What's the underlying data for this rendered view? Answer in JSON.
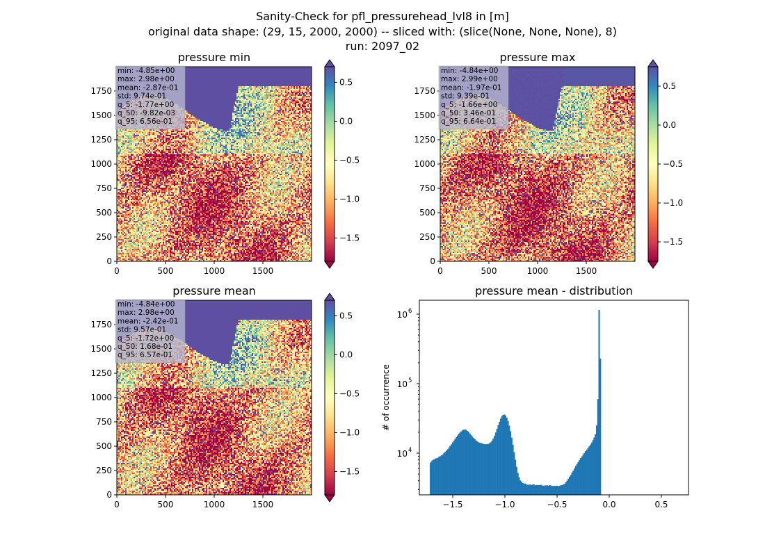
{
  "figure": {
    "title_lines": [
      "Sanity-Check for pfl_pressurehead_lvl8 in [m]",
      "original data shape: (29, 15, 2000, 2000) -- sliced with: (slice(None, None, None), 8)",
      "run: 2097_02"
    ]
  },
  "colormap": {
    "name": "Spectral",
    "stops": [
      "#9e0142",
      "#d53e4f",
      "#f46d43",
      "#fdae61",
      "#fee08b",
      "#ffffbf",
      "#e6f598",
      "#abdda4",
      "#66c2a5",
      "#3288bd",
      "#5e4fa2"
    ]
  },
  "chart_data": [
    {
      "type": "heatmap",
      "title": "pressure min",
      "xlim": [
        0,
        2000
      ],
      "ylim": [
        0,
        2000
      ],
      "xticks": [
        0,
        500,
        1000,
        1500
      ],
      "yticks": [
        0,
        250,
        500,
        750,
        1000,
        1250,
        1500,
        1750
      ],
      "colorbar": {
        "vmin": -1.8,
        "vmax": 0.7,
        "ticks": [
          0.5,
          0.0,
          -0.5,
          -1.0,
          -1.5
        ],
        "tick_labels": [
          "0.5",
          "0.0",
          "−0.5",
          "−1.0",
          "−1.5"
        ],
        "extend": "both"
      },
      "stats": [
        "min: -4.85e+00",
        "max: 2.98e+00",
        "mean: -2.87e-01",
        "std: 9.74e-01",
        "q_5: -1.77e+00",
        "q_50: -9.82e-03",
        "q_95: 6.56e-01"
      ]
    },
    {
      "type": "heatmap",
      "title": "pressure max",
      "xlim": [
        0,
        2000
      ],
      "ylim": [
        0,
        2000
      ],
      "xticks": [
        0,
        500,
        1000,
        1500
      ],
      "yticks": [
        0,
        250,
        500,
        750,
        1000,
        1250,
        1500,
        1750
      ],
      "colorbar": {
        "vmin": -1.75,
        "vmax": 0.75,
        "ticks": [
          0.5,
          0.0,
          -0.5,
          -1.0,
          -1.5
        ],
        "tick_labels": [
          "0.5",
          "0.0",
          "−0.5",
          "−1.0",
          "−1.5"
        ],
        "extend": "both"
      },
      "stats": [
        "min: -4.84e+00",
        "max: 2.99e+00",
        "mean: -1.97e-01",
        "std: 9.39e-01",
        "q_5: -1.66e+00",
        "q_50: 3.46e-01",
        "q_95: 6.64e-01"
      ]
    },
    {
      "type": "heatmap",
      "title": "pressure mean",
      "xlim": [
        0,
        2000
      ],
      "ylim": [
        0,
        2000
      ],
      "xticks": [
        0,
        500,
        1000,
        1500
      ],
      "yticks": [
        0,
        250,
        500,
        750,
        1000,
        1250,
        1500,
        1750
      ],
      "colorbar": {
        "vmin": -1.8,
        "vmax": 0.7,
        "ticks": [
          0.5,
          0.0,
          -0.5,
          -1.0,
          -1.5
        ],
        "tick_labels": [
          "0.5",
          "0.0",
          "−0.5",
          "−1.0",
          "−1.5"
        ],
        "extend": "both"
      },
      "stats": [
        "min: -4.84e+00",
        "max: 2.98e+00",
        "mean: -2.42e-01",
        "std: 9.57e-01",
        "q_5: -1.72e+00",
        "q_50: 1.68e-01",
        "q_95: 6.57e-01"
      ]
    },
    {
      "type": "bar",
      "title": "pressure mean - distribution",
      "ylabel": "# of occurrence",
      "yscale": "log",
      "xlim": [
        -1.82,
        0.76
      ],
      "ylim_log10": [
        3.4,
        6.2
      ],
      "xticks": [
        -1.5,
        -1.0,
        -0.5,
        0.0,
        0.5
      ],
      "xtick_labels": [
        "−1.5",
        "−1.0",
        "−0.5",
        "0.0",
        "0.5"
      ],
      "yticks_log10": [
        4,
        5,
        6
      ],
      "ytick_labels": [
        "10",
        "10",
        "10"
      ],
      "ytick_exponents": [
        "4",
        "5",
        "6"
      ],
      "color": "#1f77b4",
      "bin_start": -1.72,
      "bin_width": 0.0118,
      "counts": [
        7300,
        7697,
        8012,
        8108,
        8380,
        8444,
        8603,
        8926,
        9049,
        9326,
        9567,
        10036,
        10449,
        10890,
        11406,
        12050,
        12729,
        13399,
        14269,
        15085,
        15961,
        16957,
        17940,
        19032,
        19781,
        20612,
        21334,
        21767,
        21885,
        21578,
        20922,
        20170,
        19156,
        18136,
        17305,
        16576,
        15863,
        15225,
        14715,
        14328,
        14129,
        13984,
        13784,
        13576,
        13462,
        13440,
        13474,
        13574,
        13872,
        14311,
        15147,
        16287,
        17798,
        19813,
        22349,
        25221,
        28289,
        31354,
        33868,
        35546,
        35978,
        34866,
        32417,
        28926,
        24876,
        20672,
        16719,
        13186,
        10270,
        8038,
        6365,
        5204,
        4511,
        4041,
        3891,
        3726,
        3626,
        3656,
        3538,
        3508,
        3520,
        3559,
        3480,
        3537,
        3556,
        3453,
        3478,
        3475,
        3477,
        3464,
        3509,
        3397,
        3416,
        3417,
        3438,
        3442,
        3402,
        3465,
        3410,
        3366,
        3375,
        3376,
        3388,
        3396,
        3357,
        3401,
        3455,
        3480,
        3556,
        3612,
        3807,
        4011,
        4297,
        4586,
        4859,
        5280,
        5600,
        6053,
        6548,
        6983,
        7451,
        7985,
        8486,
        8981,
        9484,
        10083,
        10693,
        11262,
        11846,
        12558,
        13290,
        14233,
        15409,
        16824,
        18711,
        25000,
        60000,
        1150000,
        230000
      ]
    }
  ]
}
